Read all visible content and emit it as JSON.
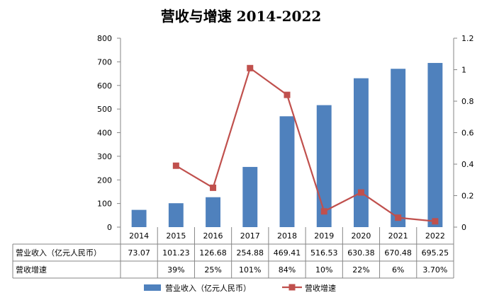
{
  "chart_data": {
    "type": "bar",
    "title": "营收与增速 2014-2022",
    "categories": [
      "2014",
      "2015",
      "2016",
      "2017",
      "2018",
      "2019",
      "2020",
      "2021",
      "2022"
    ],
    "series": [
      {
        "name": "营业收入（亿元人民币）",
        "type": "bar",
        "axis": "left",
        "color": "#4F81BD",
        "values": [
          73.07,
          101.23,
          126.68,
          254.88,
          469.41,
          516.53,
          630.38,
          670.48,
          695.25
        ]
      },
      {
        "name": "营收增速",
        "type": "line",
        "axis": "right",
        "color": "#C0504D",
        "values": [
          null,
          0.39,
          0.25,
          1.01,
          0.84,
          0.1,
          0.22,
          0.06,
          0.037
        ]
      }
    ],
    "y_left": {
      "ylim": [
        0,
        800
      ],
      "ticks": [
        "0",
        "100",
        "200",
        "300",
        "400",
        "500",
        "600",
        "700",
        "800"
      ]
    },
    "y_right": {
      "ylim": [
        0,
        1.2
      ],
      "ticks": [
        "0",
        "0.2",
        "0.4",
        "0.6",
        "0.8",
        "1",
        "1.2"
      ]
    },
    "grid": false,
    "legend": "bottom",
    "data_table": {
      "rows": [
        {
          "label": "营业收入（亿元人民币）",
          "cells": [
            "73.07",
            "101.23",
            "126.68",
            "254.88",
            "469.41",
            "516.53",
            "630.38",
            "670.48",
            "695.25"
          ]
        },
        {
          "label": "营收增速",
          "cells": [
            "",
            "39%",
            "25%",
            "101%",
            "84%",
            "10%",
            "22%",
            "6%",
            "3.70%"
          ]
        }
      ]
    }
  }
}
